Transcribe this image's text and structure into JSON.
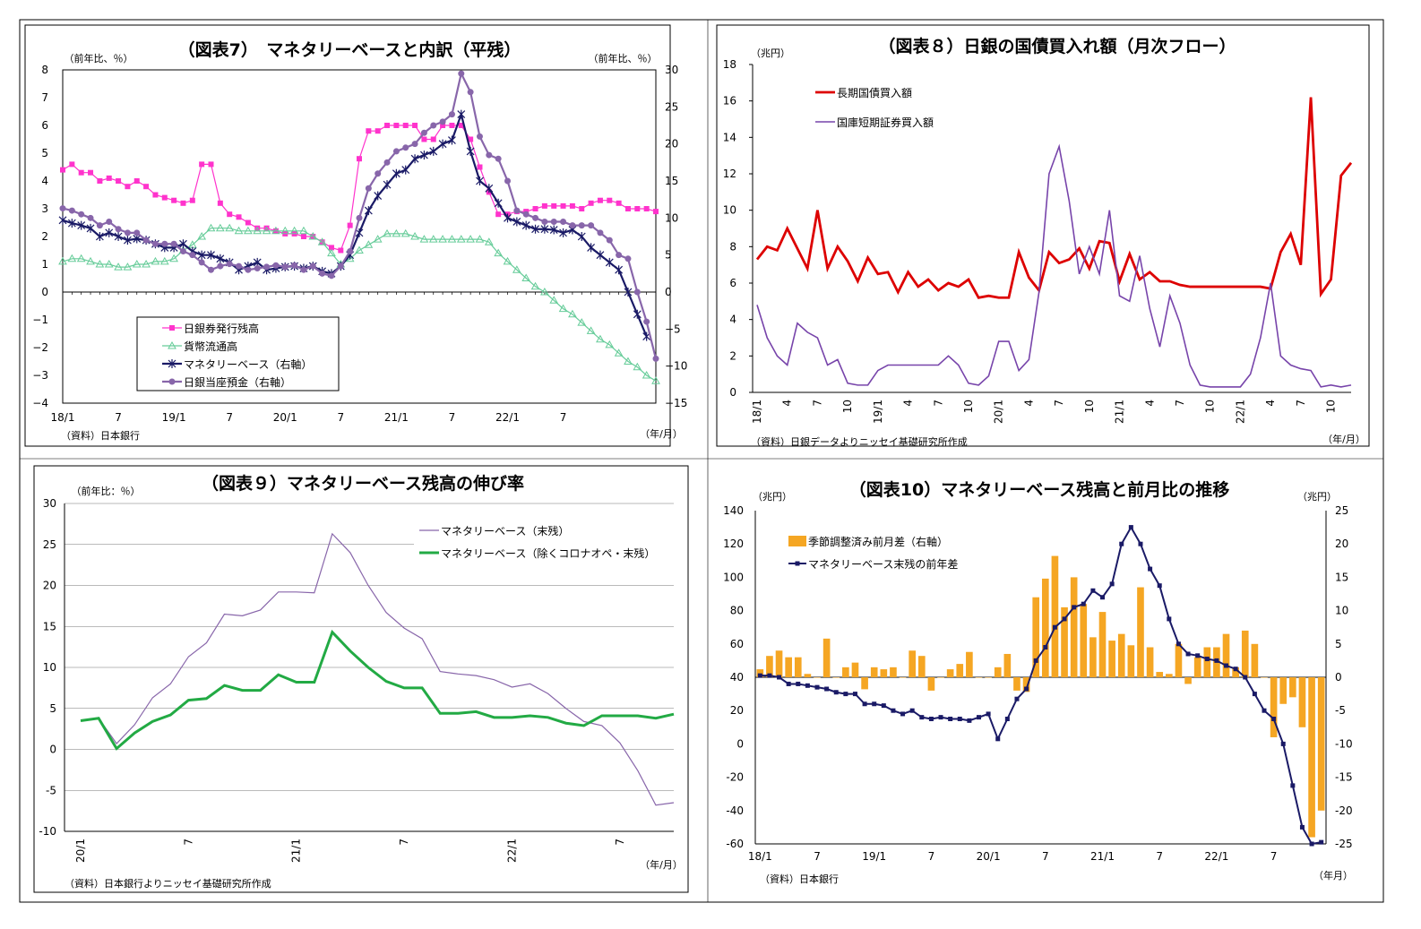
{
  "chart_data": [
    {
      "id": "chart7",
      "type": "line",
      "title": "（図表7）　マネタリーベースと内訳（平残）",
      "ylabel": "（前年比、％）",
      "ylabel_right": "（前年比、％）",
      "xlabel": "（年/月）",
      "source": "（資料）日本銀行",
      "ylim": [
        -4,
        8
      ],
      "y_ticks": [
        8,
        7,
        6,
        5,
        4,
        3,
        2,
        1,
        0,
        -1,
        -2,
        -3,
        -4
      ],
      "ylim_right": [
        -15,
        30
      ],
      "y_ticks_right": [
        30,
        25,
        20,
        15,
        10,
        5,
        0,
        -5,
        -10,
        -15
      ],
      "x_tick_labels": [
        "18/1",
        "7",
        "19/1",
        "7",
        "20/1",
        "7",
        "21/1",
        "7",
        "22/1",
        "7"
      ],
      "legend_items": [
        "日銀券発行残高",
        "貨幣流通高",
        "マネタリーベース（右軸）",
        "日銀当座預金（右軸）"
      ],
      "series": [
        {
          "name": "日銀券発行残高",
          "axis": "left",
          "color": "#ff33cc",
          "values": [
            4.4,
            4.6,
            4.3,
            4.3,
            4.0,
            4.1,
            4.0,
            3.8,
            4.0,
            3.8,
            3.5,
            3.4,
            3.3,
            3.2,
            3.3,
            4.6,
            4.6,
            3.2,
            2.8,
            2.7,
            2.5,
            2.3,
            2.3,
            2.2,
            2.1,
            2.1,
            2.0,
            2.0,
            1.8,
            1.6,
            1.5,
            2.4,
            4.8,
            5.8,
            5.8,
            6.0,
            6.0,
            6.0,
            6.0,
            5.5,
            5.5,
            6.0,
            6.0,
            6.0,
            5.5,
            4.5,
            3.6,
            2.8,
            2.8,
            2.9,
            2.9,
            3.0,
            3.1,
            3.1,
            3.1,
            3.1,
            3.0,
            3.2,
            3.3,
            3.3,
            3.2,
            3.0,
            3.0,
            3.0,
            2.9
          ]
        },
        {
          "name": "貨幣流通高",
          "axis": "left",
          "color": "#66cc99",
          "values": [
            1.1,
            1.2,
            1.2,
            1.1,
            1.0,
            1.0,
            0.9,
            0.9,
            1.0,
            1.0,
            1.1,
            1.1,
            1.2,
            1.5,
            1.7,
            2.0,
            2.3,
            2.3,
            2.3,
            2.2,
            2.2,
            2.2,
            2.2,
            2.2,
            2.2,
            2.2,
            2.2,
            2.0,
            1.8,
            1.4,
            1.0,
            1.2,
            1.5,
            1.7,
            1.9,
            2.1,
            2.1,
            2.1,
            2.0,
            1.9,
            1.9,
            1.9,
            1.9,
            1.9,
            1.9,
            1.9,
            1.8,
            1.4,
            1.1,
            0.8,
            0.5,
            0.2,
            0.0,
            -0.3,
            -0.6,
            -0.8,
            -1.1,
            -1.4,
            -1.7,
            -1.9,
            -2.2,
            -2.5,
            -2.7,
            -3.0,
            -3.2
          ]
        },
        {
          "name": "マネタリーベース（右軸）",
          "axis": "right",
          "color": "#1a1a66",
          "values": [
            9.7,
            9.3,
            9.0,
            8.6,
            7.5,
            8.0,
            7.5,
            7.0,
            7.2,
            7.0,
            6.5,
            6.0,
            6.0,
            6.5,
            5.5,
            5.0,
            5.0,
            4.5,
            4.0,
            3.0,
            3.5,
            4.0,
            3.0,
            3.2,
            3.4,
            3.5,
            3.2,
            3.5,
            2.8,
            2.5,
            3.5,
            5.0,
            8.0,
            11.0,
            13.0,
            14.5,
            16.0,
            16.5,
            18.0,
            18.5,
            19.0,
            20.0,
            20.5,
            24.0,
            19.0,
            15.0,
            14.0,
            12.0,
            10.0,
            9.5,
            9.0,
            8.5,
            8.5,
            8.4,
            8.0,
            8.4,
            7.5,
            6.0,
            5.0,
            4.0,
            3.0,
            0.0,
            -3.0,
            -6.0
          ]
        },
        {
          "name": "日銀当座預金（右軸）",
          "axis": "right",
          "color": "#8866aa",
          "values": [
            11.3,
            11.0,
            10.5,
            10.0,
            9.0,
            9.5,
            8.5,
            8.0,
            8.0,
            7.0,
            6.5,
            6.5,
            6.5,
            5.5,
            5.0,
            4.0,
            3.0,
            3.5,
            3.8,
            3.5,
            3.0,
            3.2,
            3.4,
            3.6,
            3.4,
            3.6,
            3.0,
            3.5,
            2.5,
            2.2,
            3.5,
            5.5,
            10.0,
            14.0,
            16.0,
            17.5,
            19.0,
            19.5,
            20.0,
            21.5,
            22.5,
            23.0,
            24.0,
            29.5,
            27.0,
            21.0,
            18.5,
            18.0,
            15.0,
            11.0,
            10.5,
            10.0,
            9.5,
            9.5,
            9.5,
            9.0,
            9.0,
            9.0,
            8.0,
            7.0,
            5.0,
            4.5,
            0.0,
            -4.0,
            -9.0
          ]
        }
      ]
    },
    {
      "id": "chart8",
      "type": "line",
      "title": "（図表８）日銀の国債買入れ額（月次フロー）",
      "ylabel": "（兆円）",
      "xlabel": "（年/月）",
      "source": "（資料）日銀データよりニッセイ基礎研究所作成",
      "ylim": [
        0,
        18
      ],
      "y_ticks": [
        18,
        16,
        14,
        12,
        10,
        8,
        6,
        4,
        2,
        0
      ],
      "x_tick_labels": [
        "18/1",
        "4",
        "7",
        "10",
        "19/1",
        "4",
        "7",
        "10",
        "20/1",
        "4",
        "7",
        "10",
        "21/1",
        "4",
        "7",
        "10",
        "22/1",
        "4",
        "7",
        "10"
      ],
      "legend_items": [
        "長期国債買入額",
        "国庫短期証券買入額"
      ],
      "series": [
        {
          "name": "長期国債買入額",
          "color": "#dd0000",
          "values": [
            7.3,
            8.0,
            7.8,
            9.0,
            7.9,
            6.8,
            10.0,
            6.8,
            8.0,
            7.2,
            6.1,
            7.4,
            6.5,
            6.6,
            5.5,
            6.6,
            5.8,
            6.2,
            5.6,
            6.0,
            5.8,
            6.2,
            5.2,
            5.3,
            5.2,
            5.2,
            7.7,
            6.3,
            5.6,
            7.7,
            7.1,
            7.3,
            7.9,
            6.8,
            8.3,
            8.2,
            6.1,
            7.6,
            6.2,
            6.6,
            6.1,
            6.1,
            5.9,
            5.8,
            5.8,
            5.8,
            5.8,
            5.8,
            5.8,
            5.8,
            5.8,
            5.7,
            7.7,
            8.7,
            7.0,
            16.2,
            5.4,
            6.2,
            11.9,
            12.6
          ]
        },
        {
          "name": "国庫短期証券買入額",
          "color": "#7744aa",
          "values": [
            4.8,
            3.0,
            2.0,
            1.5,
            3.8,
            3.3,
            3.0,
            1.5,
            1.8,
            0.5,
            0.4,
            0.4,
            1.2,
            1.5,
            1.5,
            1.5,
            1.5,
            1.5,
            1.5,
            2.0,
            1.5,
            0.5,
            0.4,
            0.9,
            2.8,
            2.8,
            1.2,
            1.8,
            5.5,
            12.0,
            13.5,
            10.5,
            6.5,
            8.0,
            6.5,
            10.0,
            5.3,
            5.0,
            7.5,
            4.6,
            2.5,
            5.3,
            3.8,
            1.5,
            0.4,
            0.3,
            0.3,
            0.3,
            0.3,
            1.0,
            3.0,
            6.0,
            2.0,
            1.5,
            1.3,
            1.2,
            0.3,
            0.4,
            0.3,
            0.4
          ]
        }
      ]
    },
    {
      "id": "chart9",
      "type": "line",
      "title": "（図表９）マネタリーベース残高の伸び率",
      "ylabel": "（前年比：％）",
      "xlabel": "（年/月）",
      "source": "（資料）日本銀行よりニッセイ基礎研究所作成",
      "ylim": [
        -10,
        30
      ],
      "y_ticks": [
        30,
        25,
        20,
        15,
        10,
        5,
        0,
        -5,
        -10
      ],
      "x_tick_labels": [
        "20/1",
        "7",
        "21/1",
        "7",
        "22/1",
        "7"
      ],
      "legend_items": [
        "マネタリーベース（末残）",
        "マネタリーベース（除くコロナオペ・末残）"
      ],
      "series": [
        {
          "name": "マネタリーベース（末残）",
          "color": "#8866aa",
          "values": [
            3.5,
            3.8,
            0.7,
            3.0,
            6.3,
            8.0,
            11.3,
            13.0,
            16.5,
            16.3,
            17.0,
            19.2,
            19.2,
            19.1,
            26.3,
            24.0,
            20.0,
            16.7,
            14.8,
            13.5,
            9.5,
            9.2,
            9.0,
            8.5,
            7.6,
            8.0,
            6.8,
            5.0,
            3.4,
            2.9,
            0.8,
            -2.6,
            -6.8,
            -6.5
          ]
        },
        {
          "name": "マネタリーベース（除くコロナオペ・末残）",
          "color": "#22aa44",
          "values": [
            3.5,
            3.8,
            0.1,
            2.0,
            3.4,
            4.2,
            6.0,
            6.2,
            7.8,
            7.2,
            7.2,
            9.1,
            8.2,
            8.2,
            14.3,
            12.0,
            10.0,
            8.3,
            7.5,
            7.5,
            4.4,
            4.4,
            4.6,
            3.9,
            3.9,
            4.1,
            3.9,
            3.2,
            2.9,
            4.1,
            4.1,
            4.1,
            3.8,
            4.3
          ]
        }
      ]
    },
    {
      "id": "chart10",
      "type": "bar",
      "title": "（図表10）マネタリーベース残高と前月比の推移",
      "ylabel": "（兆円）",
      "ylabel_right": "（兆円）",
      "xlabel": "（年月）",
      "source": "（資料）日本銀行",
      "ylim": [
        -60,
        140
      ],
      "y_ticks": [
        140,
        120,
        100,
        80,
        60,
        40,
        20,
        0,
        -20,
        -40,
        -60
      ],
      "ylim_right": [
        -25,
        25
      ],
      "y_ticks_right": [
        25,
        20,
        15,
        10,
        5,
        0,
        -5,
        -10,
        -15,
        -20,
        -25
      ],
      "x_tick_labels": [
        "18/1",
        "7",
        "19/1",
        "7",
        "20/1",
        "7",
        "21/1",
        "7",
        "22/1",
        "7"
      ],
      "legend_items": [
        "季節調整済み前月差（右軸）",
        "マネタリーベース末残の前年差"
      ],
      "series": [
        {
          "name": "季節調整済み前月差（右軸）",
          "type": "bar",
          "axis": "right",
          "color": "#f5a623",
          "values": [
            1.2,
            3.2,
            4.0,
            3.0,
            3.0,
            0.5,
            0,
            5.8,
            0,
            1.5,
            2.2,
            -1.8,
            1.5,
            1.2,
            1.5,
            0,
            4.0,
            3.2,
            -2.0,
            0,
            1.2,
            2.0,
            3.8,
            0,
            0,
            1.5,
            3.5,
            -2.0,
            -2.2,
            12.0,
            14.8,
            18.2,
            10.5,
            15.0,
            11.0,
            6.0,
            9.8,
            5.5,
            6.5,
            4.8,
            13.5,
            4.5,
            0.8,
            0.5,
            5.0,
            -1.0,
            3.0,
            4.5,
            4.5,
            6.5,
            1.5,
            7.0,
            5.0,
            0,
            -9.0,
            -4.0,
            -3.0,
            -7.5,
            -24.0,
            -20.0
          ]
        },
        {
          "name": "マネタリーベース末残の前年差",
          "type": "line",
          "axis": "left",
          "color": "#1a1a66",
          "values": [
            41,
            41,
            40,
            36,
            36,
            35,
            34,
            33,
            31,
            30,
            30,
            24,
            24,
            23,
            20,
            18,
            20,
            16,
            15,
            16,
            15,
            15,
            14,
            16,
            18,
            3,
            15,
            27,
            33,
            50,
            58,
            70,
            75,
            82,
            84,
            92,
            88,
            96,
            120,
            130,
            120,
            105,
            95,
            75,
            60,
            54,
            53,
            51,
            50,
            47,
            45,
            40,
            30,
            20,
            15,
            0,
            -25,
            -50,
            -60,
            -59
          ]
        }
      ]
    }
  ]
}
